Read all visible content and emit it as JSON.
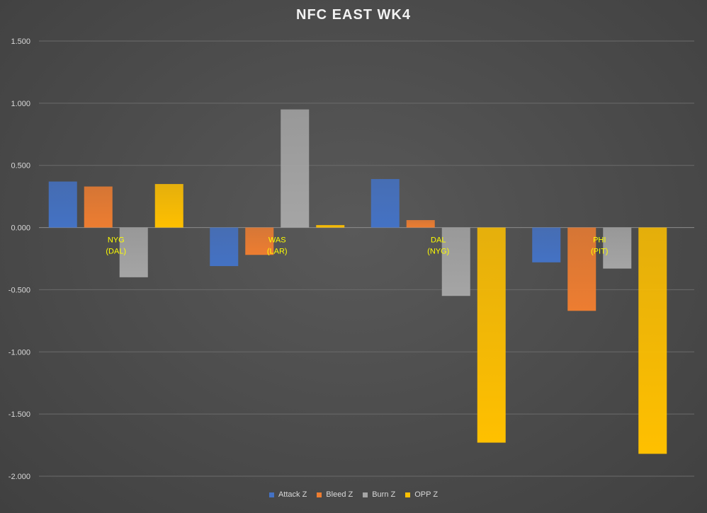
{
  "chart_data": {
    "type": "bar",
    "title": "NFC EAST WK4",
    "categories": [
      [
        "NYG",
        "(DAL)"
      ],
      [
        "WAS",
        "(LAR)"
      ],
      [
        "DAL",
        "(NYG)"
      ],
      [
        "PHI",
        "(PIT)"
      ]
    ],
    "series": [
      {
        "name": "Attack Z",
        "color": "#4472c4",
        "values": [
          0.37,
          -0.31,
          0.39,
          -0.28
        ]
      },
      {
        "name": "Bleed Z",
        "color": "#ed7d31",
        "values": [
          0.33,
          -0.22,
          0.06,
          -0.67
        ]
      },
      {
        "name": "Burn Z",
        "color": "#a5a5a5",
        "values": [
          -0.4,
          0.95,
          -0.55,
          -0.33
        ]
      },
      {
        "name": "OPP Z",
        "color": "#ffc000",
        "values": [
          0.35,
          0.02,
          -1.73,
          -1.82
        ]
      }
    ],
    "ylim": [
      -2.0,
      1.5
    ],
    "yticks": [
      "1.500",
      "1.000",
      "0.500",
      "0.000",
      "-0.500",
      "-1.000",
      "-1.500",
      "-2.000"
    ],
    "grid": true,
    "legend_position": "bottom",
    "category_label_color": "#ffff00"
  }
}
